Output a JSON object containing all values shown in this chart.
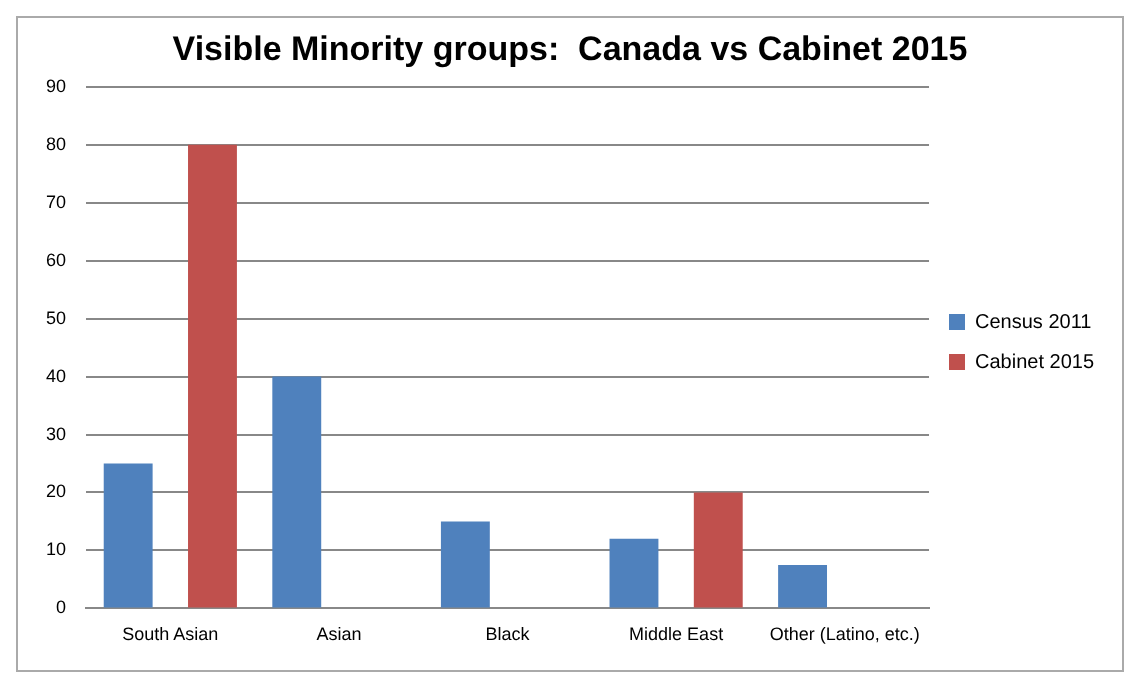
{
  "chart_data": {
    "type": "bar",
    "title": "Visible Minority groups:  Canada vs Cabinet 2015",
    "categories": [
      "South Asian",
      "Asian",
      "Black",
      "Middle East",
      "Other (Latino, etc.)"
    ],
    "series": [
      {
        "name": "Census 2011",
        "color": "#4f81bd",
        "values": [
          25,
          40,
          15,
          12,
          7.5
        ]
      },
      {
        "name": "Cabinet 2015",
        "color": "#c0504d",
        "values": [
          80,
          0,
          0,
          20,
          0
        ]
      }
    ],
    "ylim": [
      0,
      90
    ],
    "yticks": [
      0,
      10,
      20,
      30,
      40,
      50,
      60,
      70,
      80,
      90
    ],
    "grid": "y",
    "legend": "right"
  }
}
